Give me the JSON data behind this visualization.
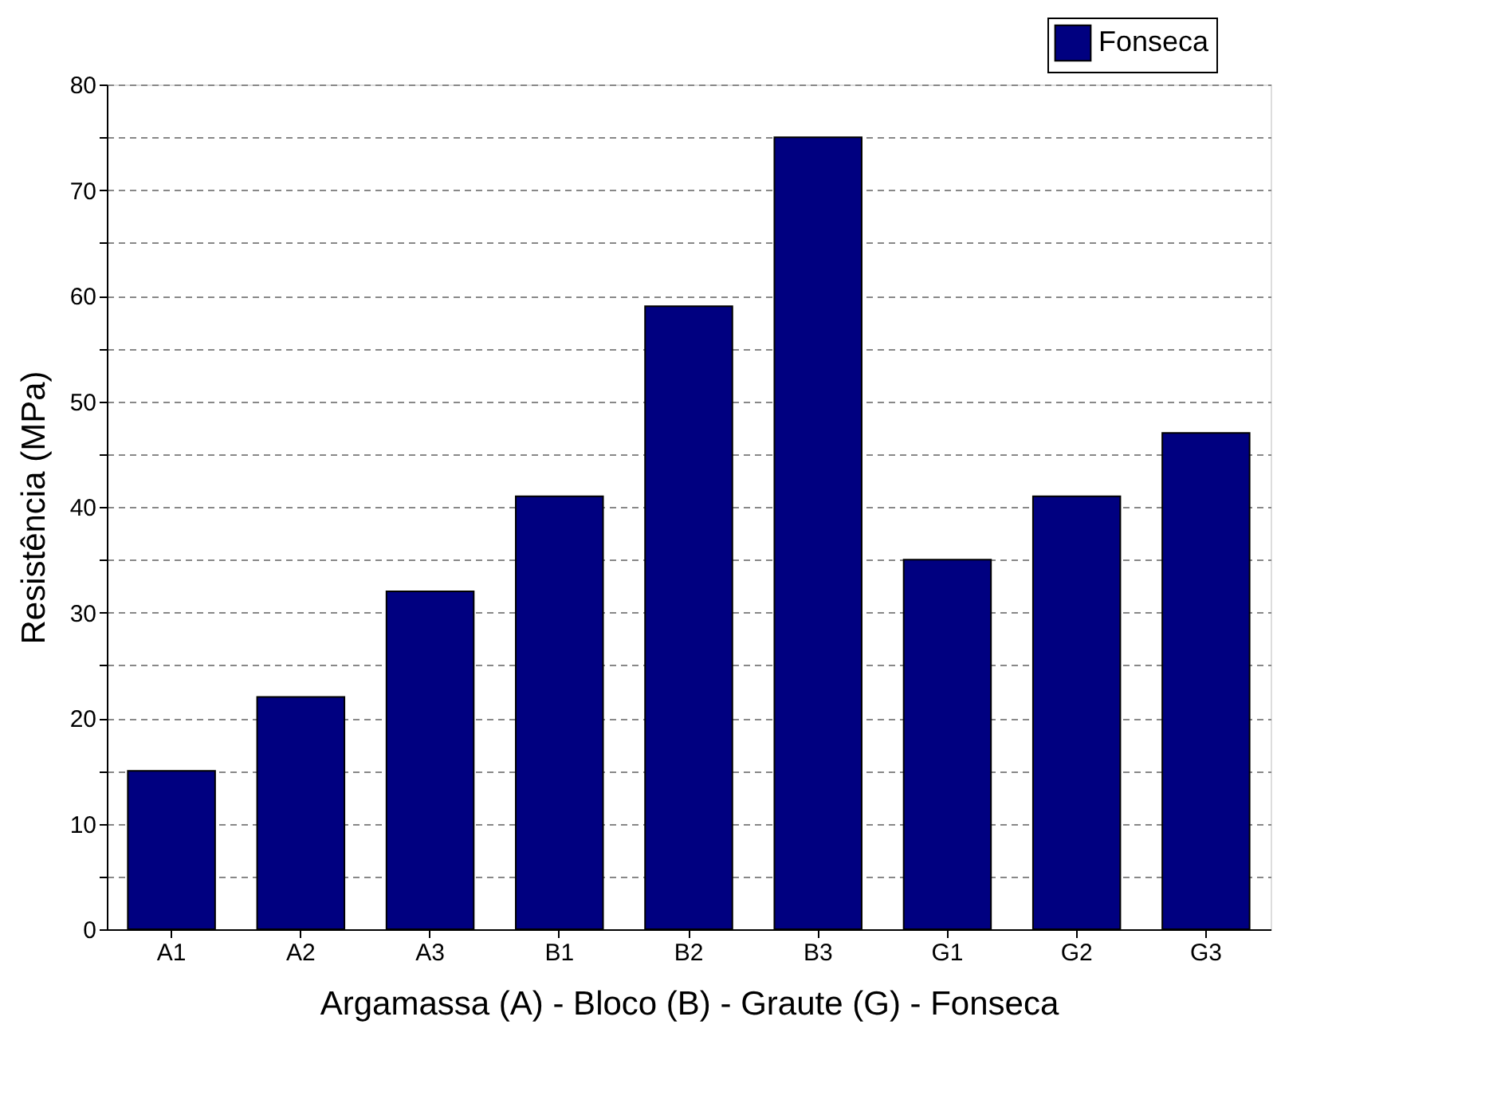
{
  "chart_data": {
    "type": "bar",
    "xlabel": "Argamassa (A) - Bloco (B) - Graute (G) - Fonseca",
    "ylabel": "Resistência (MPa)",
    "categories": [
      "A1",
      "A2",
      "A3",
      "B1",
      "B2",
      "B3",
      "G1",
      "G2",
      "G3"
    ],
    "series": [
      {
        "name": "Fonseca",
        "color": "#000080",
        "values": [
          15,
          22,
          32,
          41,
          59,
          75,
          35,
          41,
          47
        ]
      }
    ],
    "ylim": [
      0,
      80
    ],
    "yticks": [
      0,
      {
        "value": 5,
        "label": null
      },
      10,
      {
        "value": 15,
        "label": null
      },
      20,
      {
        "value": 25,
        "label": null
      },
      30,
      {
        "value": 35,
        "label": null
      },
      40,
      {
        "value": 45,
        "label": null
      },
      50,
      {
        "value": 55,
        "label": null
      },
      60,
      {
        "value": 65,
        "label": null
      },
      70,
      {
        "value": 75,
        "label": null
      },
      80
    ],
    "grid": "y",
    "legend": "top right"
  }
}
